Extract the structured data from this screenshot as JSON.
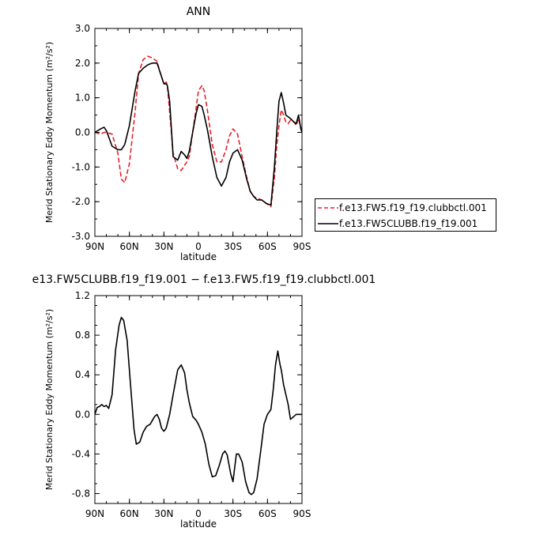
{
  "chart_data": [
    {
      "type": "line",
      "title": "ANN",
      "xlabel": "latitude",
      "ylabel": "Merid Stationary Eddy Momentum (m²/s²)",
      "x_ticks": [
        "90N",
        "60N",
        "30N",
        "0",
        "30S",
        "60S",
        "90S"
      ],
      "x_tick_values": [
        90,
        60,
        30,
        0,
        -30,
        -60,
        -90
      ],
      "xlim": [
        90,
        -90
      ],
      "ylim": [
        -3.0,
        3.0
      ],
      "y_ticks": [
        "3.0",
        "2.0",
        "1.0",
        "0.0",
        "-1.0",
        "-2.0",
        "-3.0"
      ],
      "y_tick_values": [
        3,
        2,
        1,
        0,
        -1,
        -2,
        -3
      ],
      "grid": false,
      "legend_position": "right",
      "series": [
        {
          "name": "f.e13.FW5.f19_f19.clubbctl.001",
          "color": "#e8202a",
          "dash": "dashed",
          "x": [
            90,
            85,
            82,
            80,
            75,
            70,
            67,
            64,
            60,
            55,
            52,
            48,
            44,
            40,
            36,
            33,
            30,
            28,
            27,
            25,
            22,
            18,
            15,
            12,
            10,
            8,
            5,
            2,
            0,
            -3,
            -5,
            -8,
            -12,
            -16,
            -20,
            -24,
            -27,
            -30,
            -34,
            -38,
            -42,
            -45,
            -48,
            -51,
            -55,
            -59,
            -63,
            -66,
            -68,
            -70,
            -72,
            -74,
            -76,
            -78,
            -80,
            -83,
            -85,
            -87,
            -89,
            -90
          ],
          "y": [
            0.0,
            -0.05,
            0.0,
            0.0,
            -0.05,
            -0.6,
            -1.35,
            -1.45,
            -0.9,
            0.6,
            1.7,
            2.1,
            2.2,
            2.15,
            2.05,
            1.7,
            1.4,
            1.45,
            1.35,
            0.6,
            -0.6,
            -1.05,
            -1.1,
            -0.95,
            -0.85,
            -0.7,
            0.0,
            0.7,
            1.2,
            1.35,
            1.2,
            0.6,
            -0.35,
            -0.85,
            -0.85,
            -0.5,
            -0.1,
            0.1,
            -0.05,
            -0.7,
            -1.3,
            -1.7,
            -1.85,
            -1.9,
            -1.95,
            -2.05,
            -2.15,
            -1.3,
            -0.4,
            0.2,
            0.65,
            0.5,
            0.3,
            0.25,
            0.35,
            0.3,
            0.2,
            0.4,
            0.15,
            0.1
          ]
        },
        {
          "name": "f.e13.FW5CLUBB.f19_f19.001",
          "color": "#000000",
          "dash": "solid",
          "x": [
            90,
            85,
            82,
            80,
            75,
            70,
            67,
            64,
            60,
            55,
            52,
            48,
            44,
            40,
            36,
            33,
            30,
            28,
            27,
            25,
            22,
            18,
            15,
            12,
            10,
            8,
            5,
            2,
            0,
            -3,
            -5,
            -8,
            -12,
            -16,
            -20,
            -24,
            -27,
            -30,
            -34,
            -38,
            -42,
            -45,
            -48,
            -51,
            -55,
            -59,
            -63,
            -66,
            -68,
            -70,
            -72,
            -74,
            -76,
            -78,
            -80,
            -83,
            -85,
            -87,
            -89,
            -90
          ],
          "y": [
            0.0,
            0.1,
            0.15,
            0.05,
            -0.4,
            -0.5,
            -0.5,
            -0.35,
            0.2,
            1.2,
            1.7,
            1.85,
            1.95,
            2.0,
            2.0,
            1.7,
            1.4,
            1.4,
            1.35,
            0.9,
            -0.7,
            -0.8,
            -0.55,
            -0.65,
            -0.75,
            -0.55,
            0.0,
            0.55,
            0.8,
            0.75,
            0.5,
            0.05,
            -0.7,
            -1.3,
            -1.55,
            -1.3,
            -0.85,
            -0.6,
            -0.5,
            -0.8,
            -1.35,
            -1.7,
            -1.85,
            -1.95,
            -1.95,
            -2.05,
            -2.1,
            -1.0,
            0.0,
            0.9,
            1.15,
            0.85,
            0.5,
            0.45,
            0.4,
            0.3,
            0.25,
            0.5,
            0.1,
            0.0
          ]
        }
      ]
    },
    {
      "type": "line",
      "title": "e13.FW5CLUBB.f19_f19.001 − f.e13.FW5.f19_f19.clubbctl.001",
      "xlabel": "latitude",
      "ylabel": "Merid Stationary Eddy Momentum (m²/s²)",
      "x_ticks": [
        "90N",
        "60N",
        "30N",
        "0",
        "30S",
        "60S",
        "90S"
      ],
      "x_tick_values": [
        90,
        60,
        30,
        0,
        -30,
        -60,
        -90
      ],
      "xlim": [
        90,
        -90
      ],
      "ylim": [
        -0.9,
        1.2
      ],
      "y_ticks": [
        "1.2",
        "0.8",
        "0.4",
        "0.0",
        "-0.4",
        "-0.8"
      ],
      "y_tick_values": [
        1.2,
        0.8,
        0.4,
        0.0,
        -0.4,
        -0.8
      ],
      "grid": false,
      "series": [
        {
          "color": "#000000",
          "dash": "solid",
          "x": [
            90,
            88,
            86,
            84,
            82,
            80,
            78,
            75,
            72,
            69,
            67,
            65,
            62,
            59,
            56,
            54,
            51,
            48,
            45,
            42,
            40,
            38,
            36,
            34,
            32,
            30,
            28,
            25,
            22,
            18,
            15,
            12,
            10,
            8,
            5,
            2,
            0,
            -3,
            -6,
            -9,
            -12,
            -15,
            -18,
            -21,
            -23,
            -25,
            -28,
            -30,
            -33,
            -35,
            -38,
            -41,
            -44,
            -46,
            -48,
            -51,
            -54,
            -57,
            -60,
            -63,
            -65,
            -67,
            -69,
            -71,
            -72,
            -74,
            -76,
            -78,
            -80,
            -83,
            -85,
            -87,
            -89,
            -90
          ],
          "y": [
            0.0,
            0.07,
            0.08,
            0.1,
            0.08,
            0.09,
            0.06,
            0.2,
            0.65,
            0.9,
            0.98,
            0.95,
            0.75,
            0.3,
            -0.15,
            -0.3,
            -0.28,
            -0.18,
            -0.12,
            -0.1,
            -0.06,
            -0.02,
            0.0,
            -0.05,
            -0.14,
            -0.17,
            -0.14,
            0.0,
            0.2,
            0.45,
            0.5,
            0.42,
            0.25,
            0.12,
            -0.02,
            -0.06,
            -0.1,
            -0.18,
            -0.3,
            -0.5,
            -0.63,
            -0.62,
            -0.52,
            -0.4,
            -0.37,
            -0.41,
            -0.6,
            -0.68,
            -0.4,
            -0.4,
            -0.48,
            -0.68,
            -0.79,
            -0.81,
            -0.79,
            -0.65,
            -0.38,
            -0.1,
            0.0,
            0.05,
            0.25,
            0.5,
            0.64,
            0.5,
            0.45,
            0.3,
            0.2,
            0.1,
            -0.05,
            -0.02,
            0.0,
            0.0,
            0.0,
            0.0
          ]
        }
      ]
    }
  ]
}
